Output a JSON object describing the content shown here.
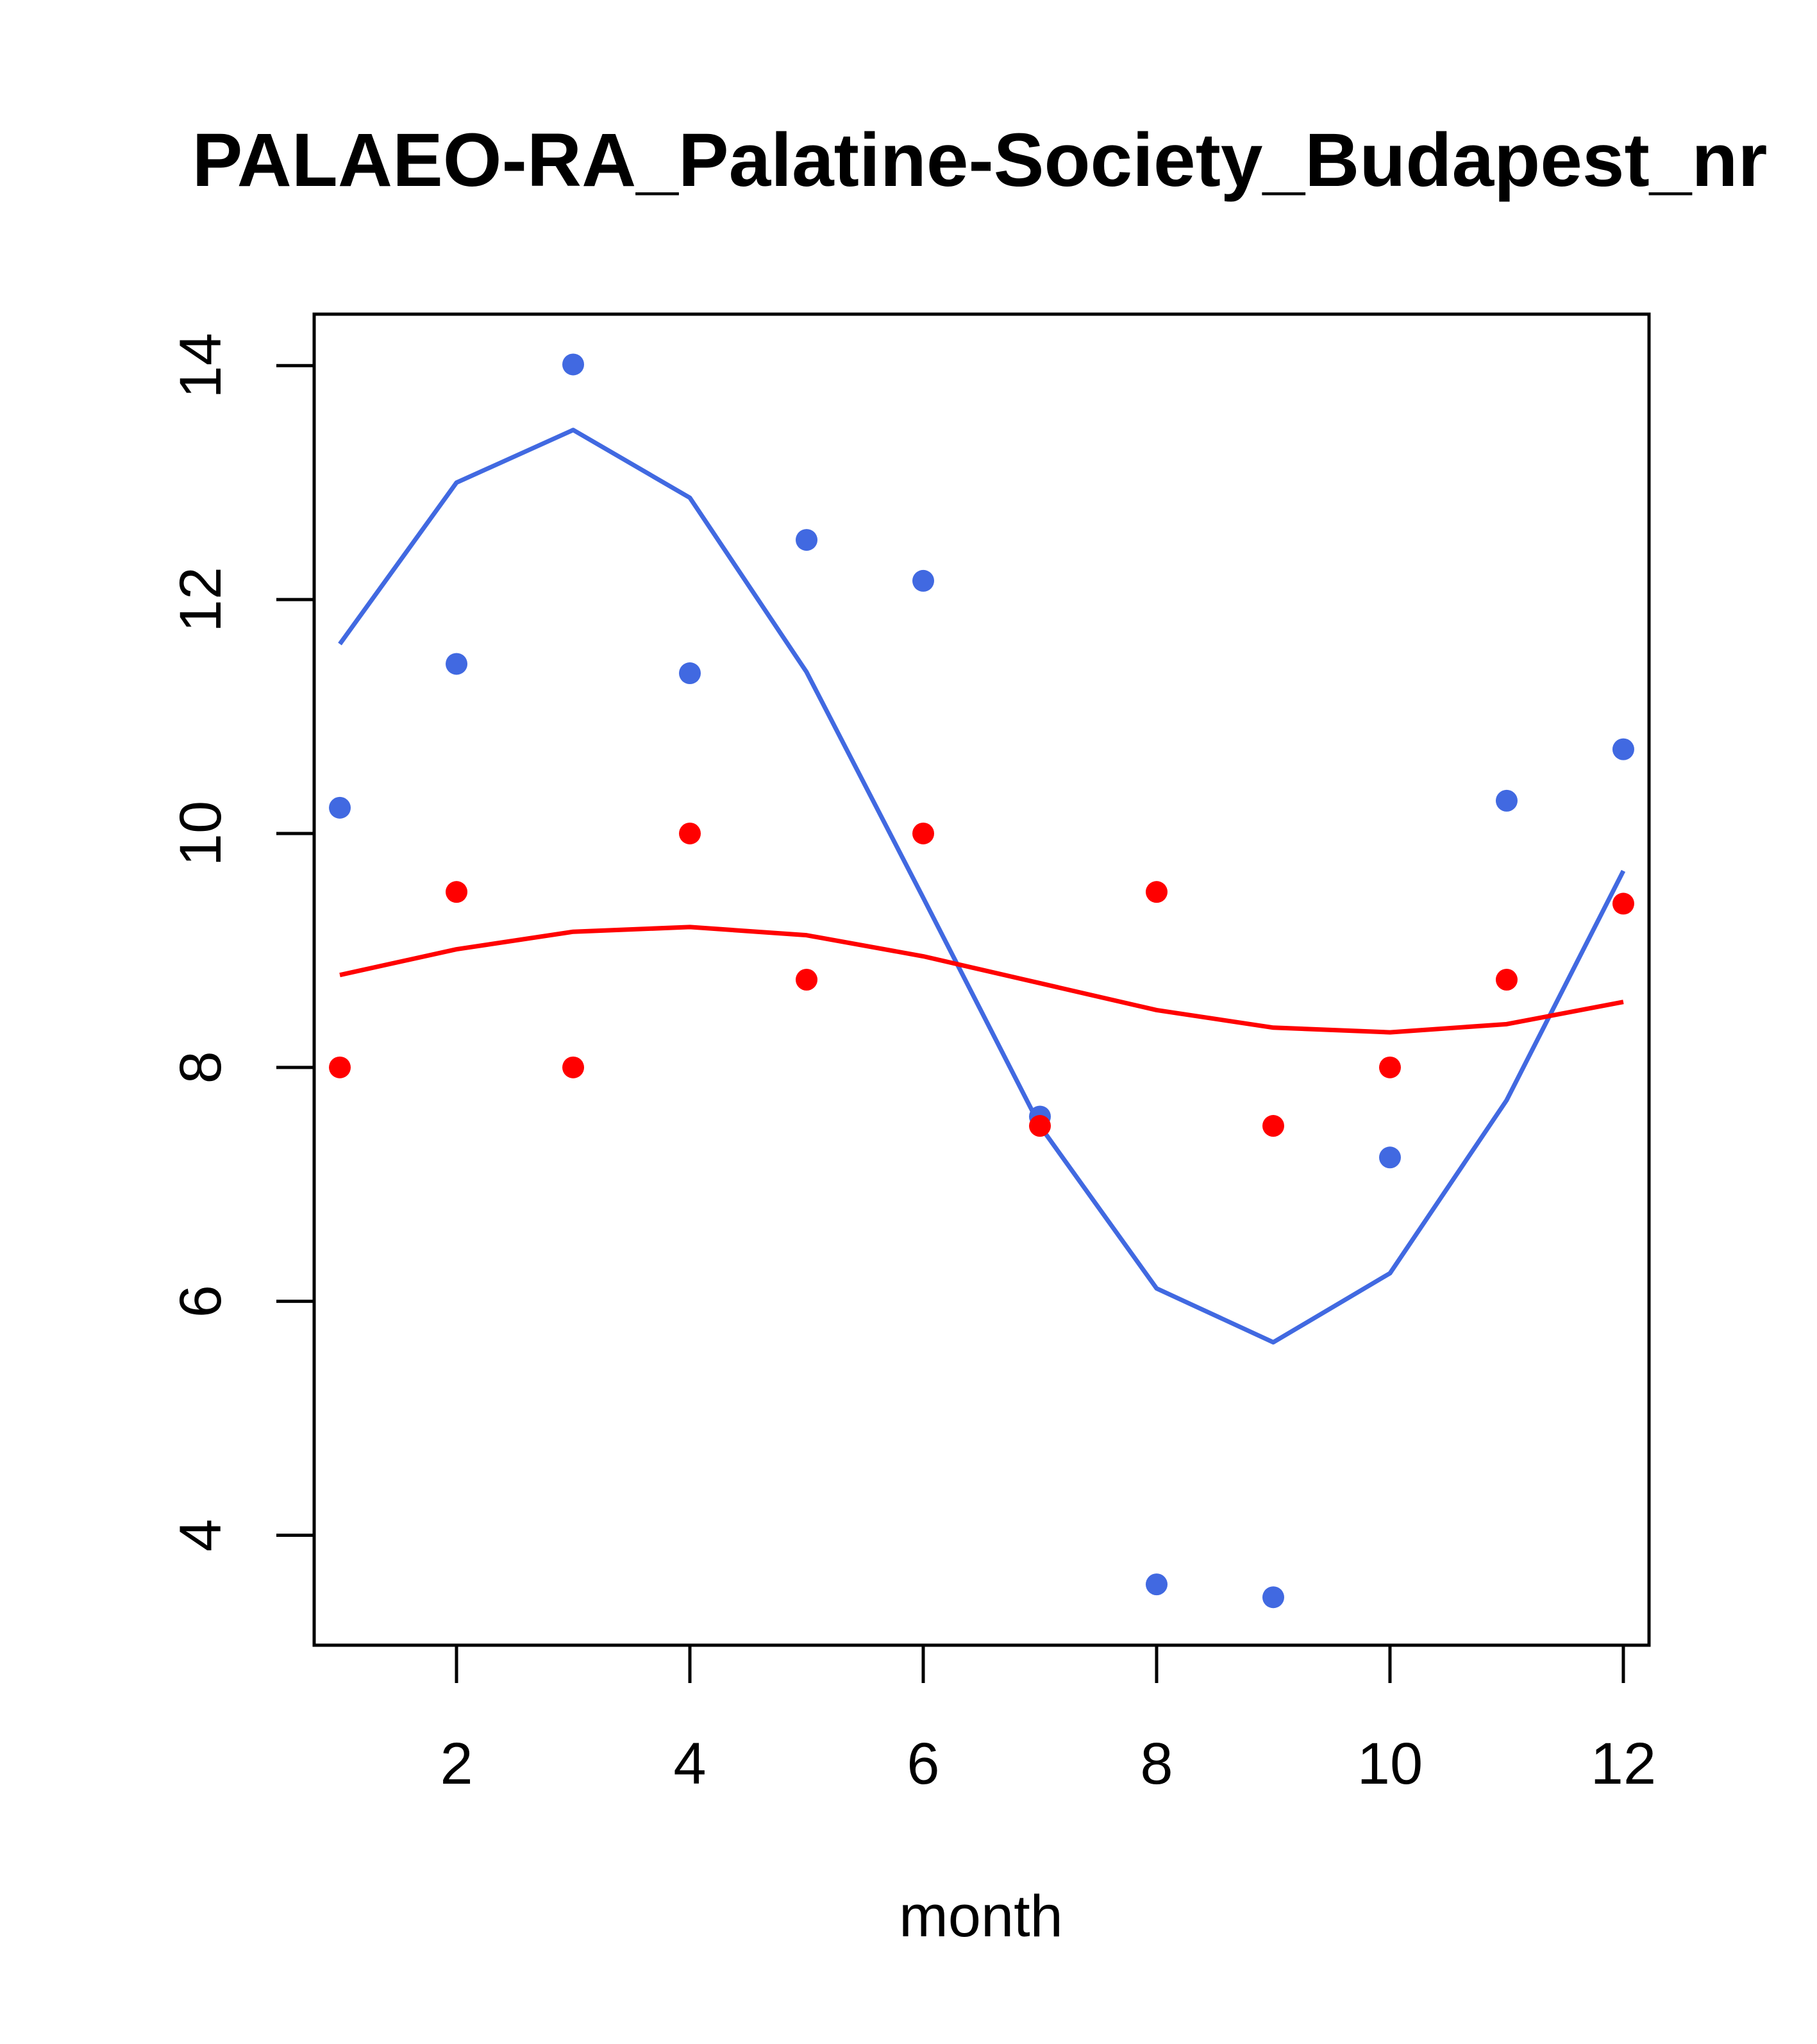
{
  "chart_data": {
    "type": "scatter",
    "title": "PALAEO-RA_Palatine-Society_Budapest_nr",
    "xlabel": "month",
    "ylabel": "",
    "xlim": [
      0.78,
      12.22
    ],
    "ylim": [
      3.06,
      14.44
    ],
    "x_ticks": [
      2,
      4,
      6,
      8,
      10,
      12
    ],
    "y_ticks": [
      4,
      6,
      8,
      10,
      12,
      14
    ],
    "grid": false,
    "x": [
      1,
      2,
      3,
      4,
      5,
      6,
      7,
      8,
      9,
      10,
      11,
      12
    ],
    "series": [
      {
        "name": "blue points",
        "kind": "points",
        "color": "#4169E1",
        "values": [
          10.22,
          11.45,
          14.01,
          11.37,
          12.51,
          12.16,
          7.58,
          3.58,
          3.47,
          7.23,
          10.28,
          10.72
        ]
      },
      {
        "name": "blue fit",
        "kind": "line",
        "color": "#4169E1",
        "values": [
          11.62,
          13.0,
          13.45,
          12.87,
          11.38,
          9.45,
          7.5,
          6.11,
          5.65,
          6.24,
          7.72,
          9.68
        ]
      },
      {
        "name": "red points",
        "kind": "points",
        "color": "#FF0000",
        "values": [
          8.0,
          9.5,
          8.0,
          10.0,
          8.75,
          10.0,
          7.5,
          9.5,
          7.5,
          8.0,
          8.75,
          9.4
        ]
      },
      {
        "name": "red fit",
        "kind": "line",
        "color": "#FF0000",
        "values": [
          8.79,
          9.01,
          9.16,
          9.2,
          9.13,
          8.95,
          8.72,
          8.49,
          8.34,
          8.3,
          8.37,
          8.56
        ]
      }
    ]
  }
}
